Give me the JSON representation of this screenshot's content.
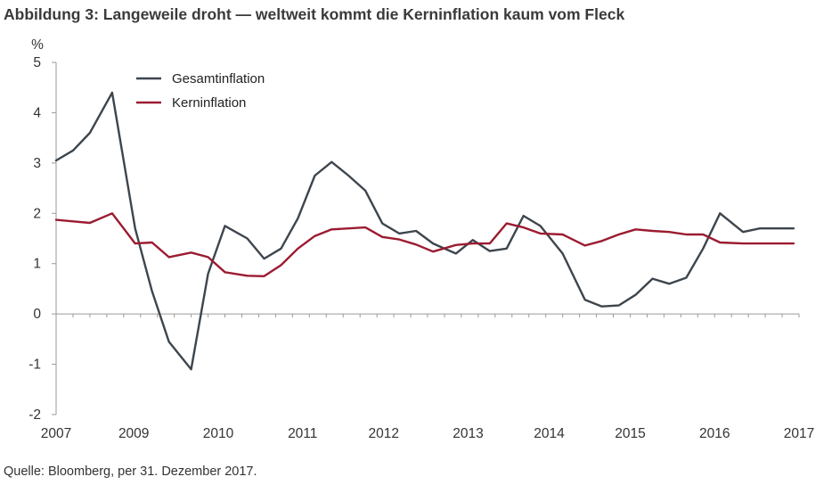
{
  "title": "Abbildung 3: Langeweile droht — weltweit kommt die Kerninflation kaum vom Fleck",
  "source": "Quelle: Bloomberg, per 31. Dezember 2017.",
  "chart_data": {
    "type": "line",
    "ylabel": "%",
    "ylim": [
      -2,
      5
    ],
    "yticks": [
      "5",
      "4",
      "3",
      "2",
      "1",
      "0",
      "-1",
      "-2"
    ],
    "ytick_values": [
      5,
      4,
      3,
      2,
      1,
      0,
      -1,
      -2
    ],
    "xlim": [
      2007.0,
      2018.0
    ],
    "xticks": [
      {
        "label": "2007",
        "value": 2007.0
      },
      {
        "label": "2009",
        "value": 2008.15
      },
      {
        "label": "2010",
        "value": 2009.4
      },
      {
        "label": "2011",
        "value": 2010.65
      },
      {
        "label": "2012",
        "value": 2011.85
      },
      {
        "label": "2013",
        "value": 2013.1
      },
      {
        "label": "2014",
        "value": 2014.3
      },
      {
        "label": "2015",
        "value": 2015.5
      },
      {
        "label": "2016",
        "value": 2016.75
      },
      {
        "label": "2017",
        "value": 2018.0
      }
    ],
    "legend_position": "top-left",
    "grid": false,
    "series": [
      {
        "name": "Gesamtinflation",
        "color": "#3d454d",
        "x": [
          2007.0,
          2007.25,
          2007.5,
          2007.83,
          2008.17,
          2008.42,
          2008.67,
          2009.0,
          2009.25,
          2009.5,
          2009.83,
          2010.08,
          2010.33,
          2010.58,
          2010.83,
          2011.08,
          2011.33,
          2011.58,
          2011.83,
          2012.08,
          2012.33,
          2012.58,
          2012.92,
          2013.17,
          2013.42,
          2013.67,
          2013.92,
          2014.17,
          2014.5,
          2014.83,
          2015.08,
          2015.33,
          2015.58,
          2015.83,
          2016.08,
          2016.33,
          2016.58,
          2016.83,
          2017.17,
          2017.42,
          2017.67,
          2017.92
        ],
        "values": [
          3.05,
          3.25,
          3.6,
          4.4,
          1.7,
          0.45,
          -0.55,
          -1.1,
          0.8,
          1.75,
          1.5,
          1.1,
          1.3,
          1.9,
          2.75,
          3.02,
          2.75,
          2.45,
          1.8,
          1.6,
          1.65,
          1.4,
          1.2,
          1.47,
          1.25,
          1.3,
          1.95,
          1.75,
          1.2,
          0.28,
          0.15,
          0.17,
          0.38,
          0.7,
          0.6,
          0.72,
          1.3,
          2.0,
          1.63,
          1.7,
          1.7,
          1.7
        ]
      },
      {
        "name": "Kerninflation",
        "color": "#9b1b30",
        "x": [
          2007.0,
          2007.25,
          2007.5,
          2007.83,
          2008.17,
          2008.42,
          2008.67,
          2009.0,
          2009.25,
          2009.5,
          2009.83,
          2010.08,
          2010.33,
          2010.58,
          2010.83,
          2011.08,
          2011.33,
          2011.58,
          2011.83,
          2012.08,
          2012.33,
          2012.58,
          2012.92,
          2013.17,
          2013.42,
          2013.67,
          2013.92,
          2014.17,
          2014.5,
          2014.83,
          2015.08,
          2015.33,
          2015.58,
          2015.83,
          2016.08,
          2016.33,
          2016.58,
          2016.83,
          2017.17,
          2017.42,
          2017.67,
          2017.92
        ],
        "values": [
          1.87,
          1.84,
          1.81,
          2.0,
          1.4,
          1.42,
          1.13,
          1.22,
          1.13,
          0.83,
          0.76,
          0.75,
          0.97,
          1.3,
          1.55,
          1.68,
          1.7,
          1.72,
          1.53,
          1.48,
          1.38,
          1.24,
          1.37,
          1.4,
          1.4,
          1.8,
          1.72,
          1.6,
          1.58,
          1.36,
          1.45,
          1.58,
          1.68,
          1.65,
          1.63,
          1.58,
          1.58,
          1.42,
          1.4,
          1.4,
          1.4,
          1.4
        ]
      }
    ]
  }
}
